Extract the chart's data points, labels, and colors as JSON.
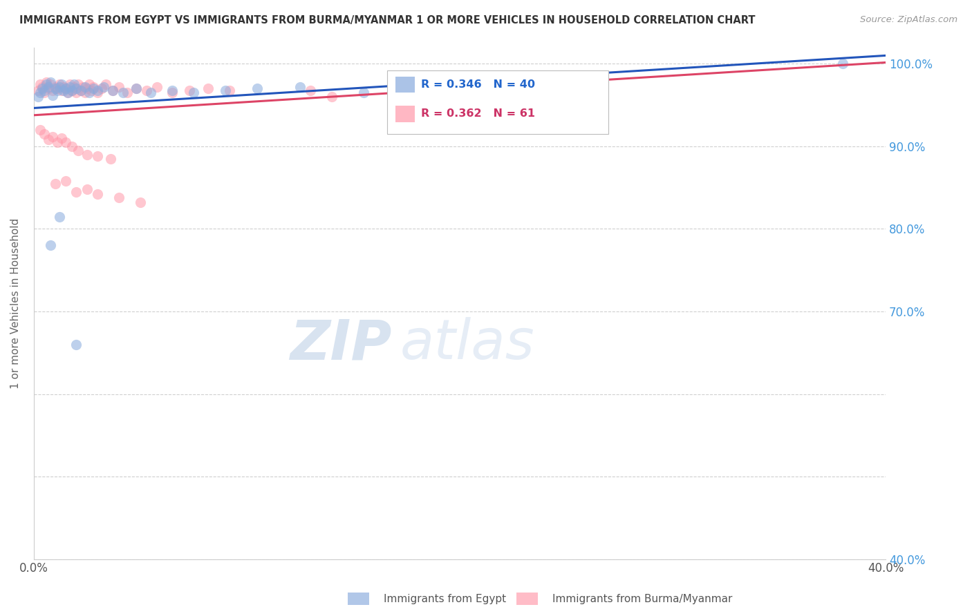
{
  "title": "IMMIGRANTS FROM EGYPT VS IMMIGRANTS FROM BURMA/MYANMAR 1 OR MORE VEHICLES IN HOUSEHOLD CORRELATION CHART",
  "source": "Source: ZipAtlas.com",
  "ylabel": "1 or more Vehicles in Household",
  "legend1_label": "Immigrants from Egypt",
  "legend2_label": "Immigrants from Burma/Myanmar",
  "R_egypt": 0.346,
  "N_egypt": 40,
  "R_burma": 0.362,
  "N_burma": 61,
  "xmin": 0.0,
  "xmax": 0.4,
  "ymin": 0.4,
  "ymax": 1.02,
  "color_egypt": "#88AADD",
  "color_burma": "#FF99AA",
  "trendline_egypt": "#2255BB",
  "trendline_burma": "#DD4466",
  "watermark_zip": "ZIP",
  "watermark_atlas": "atlas",
  "egypt_x": [
    0.002,
    0.003,
    0.004,
    0.005,
    0.006,
    0.007,
    0.008,
    0.009,
    0.01,
    0.011,
    0.012,
    0.013,
    0.014,
    0.015,
    0.016,
    0.017,
    0.018,
    0.019,
    0.02,
    0.022,
    0.024,
    0.026,
    0.028,
    0.03,
    0.033,
    0.037,
    0.042,
    0.048,
    0.055,
    0.065,
    0.075,
    0.09,
    0.105,
    0.125,
    0.155,
    0.17,
    0.008,
    0.012,
    0.02,
    0.38
  ],
  "egypt_y": [
    0.96,
    0.965,
    0.97,
    0.968,
    0.975,
    0.972,
    0.978,
    0.962,
    0.97,
    0.968,
    0.972,
    0.975,
    0.968,
    0.97,
    0.965,
    0.972,
    0.968,
    0.975,
    0.97,
    0.968,
    0.972,
    0.965,
    0.97,
    0.968,
    0.972,
    0.968,
    0.965,
    0.97,
    0.965,
    0.968,
    0.965,
    0.968,
    0.97,
    0.972,
    0.965,
    0.968,
    0.78,
    0.815,
    0.66,
    1.0
  ],
  "burma_x": [
    0.002,
    0.003,
    0.004,
    0.005,
    0.006,
    0.007,
    0.008,
    0.009,
    0.01,
    0.011,
    0.012,
    0.013,
    0.014,
    0.015,
    0.016,
    0.017,
    0.018,
    0.019,
    0.02,
    0.021,
    0.022,
    0.023,
    0.024,
    0.025,
    0.026,
    0.027,
    0.028,
    0.03,
    0.032,
    0.034,
    0.037,
    0.04,
    0.044,
    0.048,
    0.053,
    0.058,
    0.065,
    0.073,
    0.082,
    0.092,
    0.003,
    0.005,
    0.007,
    0.009,
    0.011,
    0.013,
    0.015,
    0.018,
    0.021,
    0.025,
    0.03,
    0.036,
    0.01,
    0.015,
    0.02,
    0.025,
    0.03,
    0.04,
    0.05,
    0.14,
    0.13
  ],
  "burma_y": [
    0.968,
    0.975,
    0.972,
    0.965,
    0.978,
    0.97,
    0.975,
    0.968,
    0.972,
    0.97,
    0.975,
    0.968,
    0.972,
    0.97,
    0.965,
    0.975,
    0.968,
    0.972,
    0.965,
    0.975,
    0.968,
    0.972,
    0.965,
    0.97,
    0.975,
    0.968,
    0.972,
    0.965,
    0.97,
    0.975,
    0.968,
    0.972,
    0.965,
    0.97,
    0.968,
    0.972,
    0.965,
    0.968,
    0.97,
    0.968,
    0.92,
    0.915,
    0.908,
    0.912,
    0.905,
    0.91,
    0.905,
    0.9,
    0.895,
    0.89,
    0.888,
    0.885,
    0.855,
    0.858,
    0.845,
    0.848,
    0.842,
    0.838,
    0.832,
    0.96,
    0.968
  ],
  "trendline_x_start": 0.0,
  "trendline_x_end": 0.4
}
